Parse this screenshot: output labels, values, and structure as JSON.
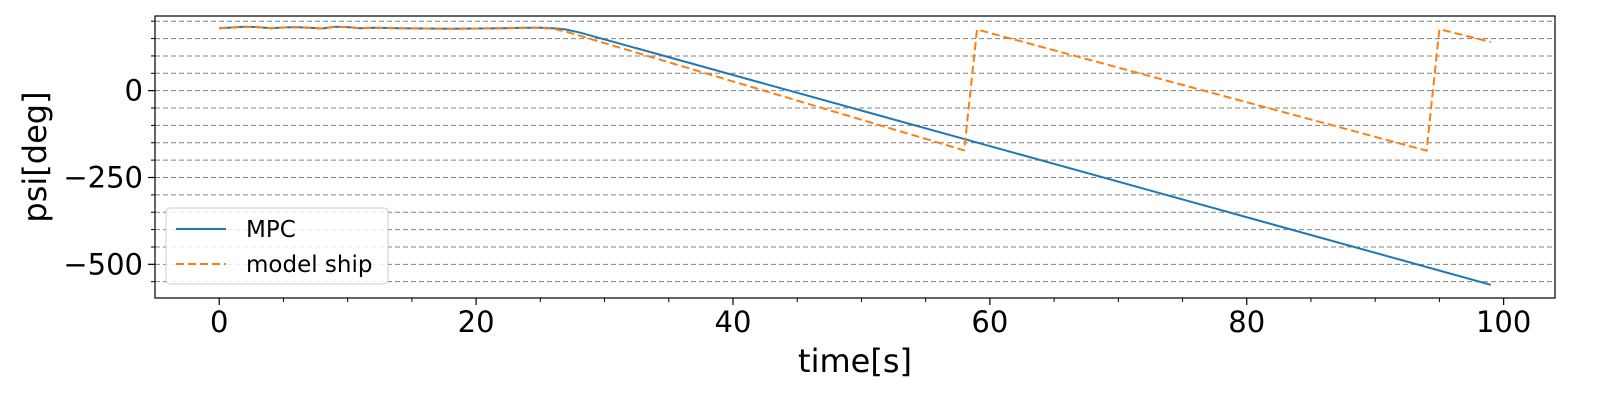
{
  "chart_data": {
    "type": "line",
    "title": "",
    "xlabel": "time[s]",
    "ylabel": "psi[deg]",
    "xlim": [
      -5,
      104
    ],
    "ylim": [
      -597,
      215
    ],
    "x_ticks": [
      0,
      20,
      40,
      60,
      80,
      100
    ],
    "x_tick_labels": [
      "0",
      "20",
      "40",
      "60",
      "80",
      "100"
    ],
    "x_minor_ticks": [
      5,
      10,
      15,
      25,
      30,
      35,
      45,
      50,
      55,
      65,
      70,
      75,
      85,
      90,
      95
    ],
    "y_ticks": [
      -500,
      -250,
      0
    ],
    "y_tick_labels": [
      "−500",
      "−250",
      "0"
    ],
    "y_gridlines": [
      -550,
      -500,
      -450,
      -400,
      -350,
      -300,
      -250,
      -200,
      -150,
      -100,
      -50,
      0,
      50,
      100,
      150,
      200
    ],
    "grid": "horizontal dashed gray",
    "legend_position": "lower-left",
    "series": [
      {
        "name": "MPC",
        "color": "#1f77b4",
        "style": "solid",
        "x": [
          0,
          1,
          2,
          3,
          4,
          5,
          6,
          7,
          8,
          9,
          10,
          11,
          12,
          14,
          16,
          18,
          20,
          22,
          24,
          25,
          26,
          27,
          28,
          99
        ],
        "y": [
          180,
          182,
          184,
          183,
          180,
          182,
          183,
          181,
          179,
          184,
          183,
          180,
          181,
          180,
          179,
          178,
          179,
          180,
          181,
          181,
          180,
          176,
          168,
          -559
        ]
      },
      {
        "name": "model ship",
        "color": "#ff7f0e",
        "style": "dashed",
        "x": [
          0,
          1,
          2,
          3,
          4,
          5,
          6,
          7,
          8,
          9,
          10,
          11,
          12,
          14,
          16,
          18,
          20,
          22,
          24,
          25,
          26,
          27,
          58,
          59,
          94,
          95,
          99
        ],
        "y": [
          180,
          182,
          184,
          183,
          180,
          182,
          183,
          181,
          179,
          184,
          183,
          180,
          181,
          180,
          179,
          178,
          179,
          180,
          181,
          181,
          178,
          170,
          -172,
          176,
          -173,
          177,
          140
        ]
      }
    ]
  }
}
